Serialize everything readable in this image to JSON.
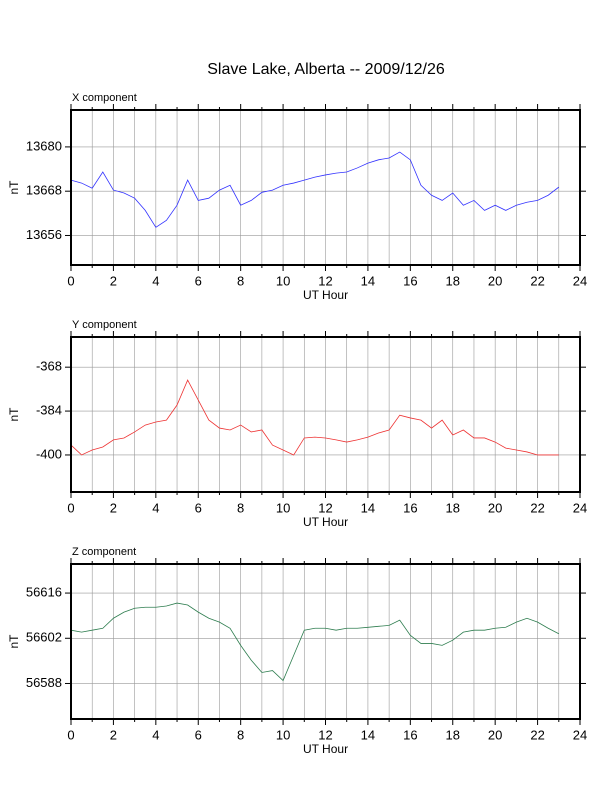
{
  "title": "Slave Lake, Alberta -- 2009/12/26",
  "chart_data": [
    {
      "type": "line",
      "title": "X component",
      "xlabel": "UT Hour",
      "ylabel": "nT",
      "color": "#3333ff",
      "grid": true,
      "xlim": [
        0,
        24
      ],
      "xticks": [
        0,
        2,
        4,
        6,
        8,
        10,
        12,
        14,
        16,
        18,
        20,
        22,
        24
      ],
      "xminor": [
        1,
        3,
        5,
        7,
        9,
        11,
        13,
        15,
        17,
        19,
        21,
        23
      ],
      "ylim": [
        13648,
        13690
      ],
      "yticks": [
        13656,
        13668,
        13680
      ],
      "x": [
        0,
        0.5,
        1,
        1.5,
        2,
        2.5,
        3,
        3.5,
        4,
        4.5,
        5,
        5.5,
        6,
        6.5,
        7,
        7.5,
        8,
        8.5,
        9,
        9.5,
        10,
        10.5,
        11,
        11.5,
        12,
        12.5,
        13,
        13.5,
        14,
        14.5,
        15,
        15.5,
        16,
        16.5,
        17,
        17.5,
        18,
        18.5,
        19,
        19.5,
        20,
        20.5,
        21,
        21.5,
        22,
        22.5,
        23
      ],
      "values": [
        13671.0,
        13670.2,
        13668.8,
        13673.2,
        13668.3,
        13667.5,
        13666.1,
        13662.8,
        13658.2,
        13660.1,
        13664.2,
        13671.0,
        13665.5,
        13666.1,
        13668.3,
        13669.6,
        13664.2,
        13665.5,
        13667.7,
        13668.3,
        13669.6,
        13670.2,
        13671.0,
        13671.8,
        13672.4,
        13672.9,
        13673.2,
        13674.3,
        13675.6,
        13676.5,
        13677.0,
        13678.6,
        13676.5,
        13669.6,
        13666.9,
        13665.5,
        13667.5,
        13664.2,
        13665.5,
        13662.8,
        13664.2,
        13662.8,
        13664.2,
        13665.0,
        13665.5,
        13666.9,
        13669.1
      ]
    },
    {
      "type": "line",
      "title": "Y component",
      "xlabel": "UT Hour",
      "ylabel": "nT",
      "color": "#ee3333",
      "grid": true,
      "xlim": [
        0,
        24
      ],
      "xticks": [
        0,
        2,
        4,
        6,
        8,
        10,
        12,
        14,
        16,
        18,
        20,
        22,
        24
      ],
      "xminor": [
        1,
        3,
        5,
        7,
        9,
        11,
        13,
        15,
        17,
        19,
        21,
        23
      ],
      "ylim": [
        -413.5,
        -357
      ],
      "yticks": [
        -400,
        -384,
        -368
      ],
      "x": [
        0,
        0.5,
        1,
        1.5,
        2,
        2.5,
        3,
        3.5,
        4,
        4.5,
        5,
        5.5,
        6,
        6.5,
        7,
        7.5,
        8,
        8.5,
        9,
        9.5,
        10,
        10.5,
        11,
        11.5,
        12,
        12.5,
        13,
        13.5,
        14,
        14.5,
        15,
        15.5,
        16,
        16.5,
        17,
        17.5,
        18,
        18.5,
        19,
        19.5,
        20,
        20.5,
        21,
        21.5,
        22,
        22.5,
        23
      ],
      "values": [
        -396.4,
        -400,
        -398.2,
        -397.1,
        -394.5,
        -393.8,
        -391.6,
        -389.1,
        -388,
        -387.3,
        -381.8,
        -372.7,
        -380,
        -387.3,
        -390.2,
        -390.9,
        -389.1,
        -391.6,
        -390.9,
        -396.4,
        -398.2,
        -400,
        -393.8,
        -393.5,
        -393.8,
        -394.5,
        -395.3,
        -394.5,
        -393.5,
        -392,
        -390.9,
        -385.5,
        -386.5,
        -387.3,
        -390.2,
        -387.3,
        -392.7,
        -390.9,
        -393.8,
        -393.8,
        -395.3,
        -397.5,
        -398.2,
        -398.9,
        -400,
        -400,
        -400
      ]
    },
    {
      "type": "line",
      "title": "Z component",
      "xlabel": "UT Hour",
      "ylabel": "nT",
      "color": "#2e7d4f",
      "grid": true,
      "xlim": [
        0,
        24
      ],
      "xticks": [
        0,
        2,
        4,
        6,
        8,
        10,
        12,
        14,
        16,
        18,
        20,
        22,
        24
      ],
      "xminor": [
        1,
        3,
        5,
        7,
        9,
        11,
        13,
        15,
        17,
        19,
        21,
        23
      ],
      "ylim": [
        56577,
        56625
      ],
      "yticks": [
        56588,
        56602,
        56616
      ],
      "x": [
        0,
        0.5,
        1,
        1.5,
        2,
        2.5,
        3,
        3.5,
        4,
        4.5,
        5,
        5.5,
        6,
        6.5,
        7,
        7.5,
        8,
        8.5,
        9,
        9.5,
        10,
        10.5,
        11,
        11.5,
        12,
        12.5,
        13,
        13.5,
        14,
        14.5,
        15,
        15.5,
        16,
        16.5,
        17,
        17.5,
        18,
        18.5,
        19,
        19.5,
        20,
        20.5,
        21,
        21.5,
        22,
        22.5,
        23
      ],
      "values": [
        56604.5,
        56603.9,
        56604.5,
        56605.1,
        56608.2,
        56610.1,
        56611.3,
        56611.6,
        56611.6,
        56612,
        56612.9,
        56612.3,
        56610.1,
        56608.2,
        56607,
        56605.1,
        56599.8,
        56595.2,
        56591.4,
        56592,
        56588.9,
        56596.7,
        56604.5,
        56605.1,
        56605.1,
        56604.5,
        56605.1,
        56605.1,
        56605.4,
        56605.7,
        56606,
        56607.6,
        56602.9,
        56600.4,
        56600.4,
        56599.8,
        56601.4,
        56603.9,
        56604.5,
        56604.5,
        56605.1,
        56605.4,
        56607,
        56608.2,
        56607,
        56605.1,
        56603.4
      ]
    }
  ]
}
